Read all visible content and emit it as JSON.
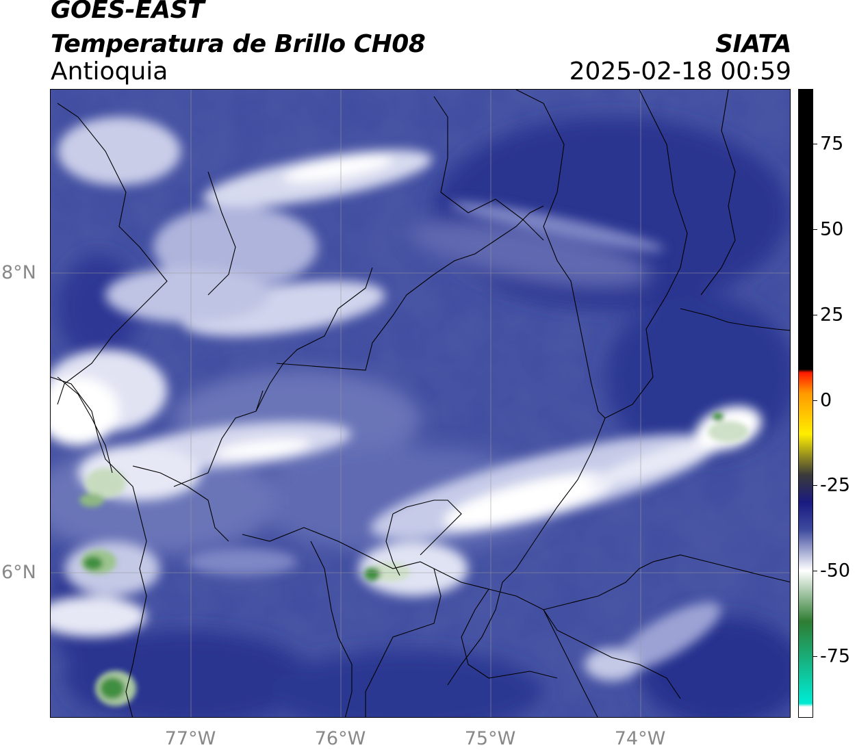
{
  "header": {
    "satellite": "GOES-EAST",
    "product": "Temperatura de Brillo CH08",
    "region": "Antioquia",
    "organization": "SIATA",
    "datetime": "2025-02-18 00:59"
  },
  "map": {
    "latitude_labels": [
      "8°N",
      "6°N"
    ],
    "longitude_labels": [
      "77°W",
      "76°W",
      "75°W",
      "74°W"
    ],
    "extent_lon": [
      -77.95,
      -73.0
    ],
    "extent_lat": [
      5.0,
      9.2
    ],
    "background_color": "#3d4a9e",
    "border_color": "#000000",
    "gridline_color": "#9a9a9a"
  },
  "colorbar": {
    "tick_labels": [
      "75",
      "50",
      "25",
      "0",
      "-25",
      "-50",
      "-75"
    ],
    "tick_values": [
      75,
      50,
      25,
      0,
      -25,
      -50,
      -75
    ],
    "range": [
      -93,
      91
    ],
    "colors": {
      "warm_black": "#000000",
      "red": "#ff1a00",
      "orange": "#ff9900",
      "yellow": "#ffee00",
      "dark_gray": "#3a3a3a",
      "navy": "#1a1a80",
      "blue": "#3d4a9e",
      "white": "#ffffff",
      "green": "#2e7d32",
      "teal": "#00e8d0"
    }
  }
}
